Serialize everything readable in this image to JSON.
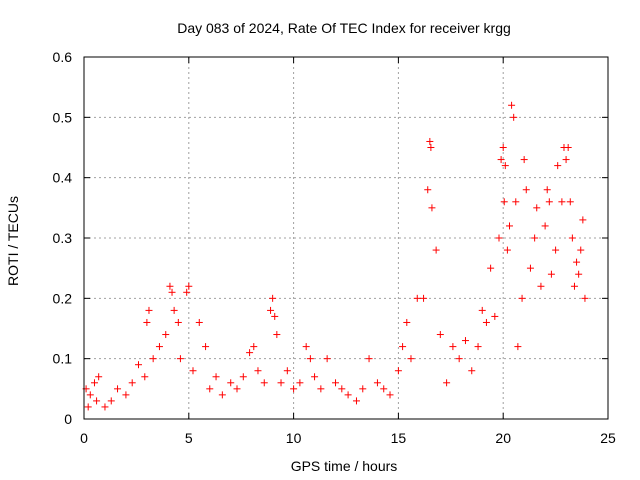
{
  "chart_data": {
    "type": "scatter",
    "title": "Day 083 of 2024, Rate Of TEC Index for receiver krgg",
    "xlabel": "GPS time / hours",
    "ylabel": "ROTI / TECUs",
    "xlim": [
      0,
      25
    ],
    "ylim": [
      0,
      0.6
    ],
    "xticks": [
      0,
      5,
      10,
      15,
      20,
      25
    ],
    "yticks": [
      0,
      0.1,
      0.2,
      0.3,
      0.4,
      0.5,
      0.6
    ],
    "xtick_labels": [
      "0",
      "5",
      "10",
      "15",
      "20",
      "25"
    ],
    "ytick_labels": [
      "0",
      "0.1",
      "0.2",
      "0.3",
      "0.4",
      "0.5",
      "0.6"
    ],
    "grid": true,
    "marker": "plus",
    "color": "#ff0000",
    "series": [
      {
        "x": [
          0.1,
          0.2,
          0.3,
          0.5,
          0.6,
          0.7,
          1.0,
          1.3,
          1.6,
          2.0,
          2.3,
          2.6,
          2.9,
          3.0,
          3.1,
          3.3,
          3.6,
          3.9,
          4.1,
          4.2,
          4.3,
          4.5,
          4.6,
          4.9,
          5.0,
          5.2,
          5.5,
          5.8,
          6.0,
          6.3,
          6.6,
          7.0,
          7.3,
          7.6,
          7.9,
          8.1,
          8.3,
          8.6,
          8.9,
          9.0,
          9.1,
          9.2,
          9.4,
          9.7,
          10.0,
          10.3,
          10.6,
          10.8,
          11.0,
          11.3,
          11.6,
          12.0,
          12.3,
          12.6,
          13.0,
          13.3,
          13.6,
          14.0,
          14.3,
          14.6,
          15.0,
          15.2,
          15.4,
          15.6,
          15.9,
          16.2,
          16.4,
          16.5,
          16.55,
          16.6,
          16.8,
          17.0,
          17.3,
          17.6,
          17.9,
          18.2,
          18.5,
          18.8,
          19.0,
          19.2,
          19.4,
          19.6,
          19.8,
          19.9,
          20.0,
          20.05,
          20.1,
          20.2,
          20.3,
          20.4,
          20.5,
          20.6,
          20.7,
          20.9,
          21.0,
          21.1,
          21.3,
          21.5,
          21.6,
          21.8,
          22.0,
          22.1,
          22.2,
          22.3,
          22.5,
          22.6,
          22.8,
          22.9,
          23.0,
          23.1,
          23.2,
          23.3,
          23.4,
          23.5,
          23.6,
          23.7,
          23.8,
          23.9
        ],
        "y": [
          0.05,
          0.02,
          0.04,
          0.06,
          0.03,
          0.07,
          0.02,
          0.03,
          0.05,
          0.04,
          0.06,
          0.09,
          0.07,
          0.16,
          0.18,
          0.1,
          0.12,
          0.14,
          0.22,
          0.21,
          0.18,
          0.16,
          0.1,
          0.21,
          0.22,
          0.08,
          0.16,
          0.12,
          0.05,
          0.07,
          0.04,
          0.06,
          0.05,
          0.07,
          0.11,
          0.12,
          0.08,
          0.06,
          0.18,
          0.2,
          0.17,
          0.14,
          0.06,
          0.08,
          0.05,
          0.06,
          0.12,
          0.1,
          0.07,
          0.05,
          0.1,
          0.06,
          0.05,
          0.04,
          0.03,
          0.05,
          0.1,
          0.06,
          0.05,
          0.04,
          0.08,
          0.12,
          0.16,
          0.1,
          0.2,
          0.2,
          0.38,
          0.46,
          0.45,
          0.35,
          0.28,
          0.14,
          0.06,
          0.12,
          0.1,
          0.13,
          0.08,
          0.12,
          0.18,
          0.16,
          0.25,
          0.17,
          0.3,
          0.43,
          0.45,
          0.36,
          0.42,
          0.28,
          0.32,
          0.52,
          0.5,
          0.36,
          0.12,
          0.2,
          0.43,
          0.38,
          0.25,
          0.3,
          0.35,
          0.22,
          0.32,
          0.38,
          0.36,
          0.24,
          0.28,
          0.42,
          0.36,
          0.45,
          0.43,
          0.45,
          0.36,
          0.3,
          0.22,
          0.26,
          0.24,
          0.28,
          0.33,
          0.2
        ]
      }
    ]
  }
}
